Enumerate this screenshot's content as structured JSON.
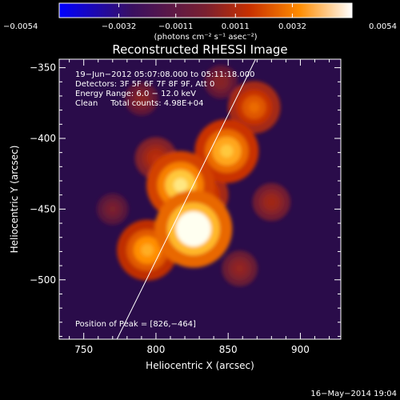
{
  "chart_data": {
    "type": "heatmap",
    "title": "Reconstructed RHESSI Image",
    "xlabel": "Heliocentric X (arcsec)",
    "ylabel": "Heliocentric Y (arcsec)",
    "xlim": [
      733,
      928
    ],
    "ylim": [
      -542,
      -344
    ],
    "x_ticks": [
      750,
      800,
      850,
      900
    ],
    "y_ticks": [
      -350,
      -400,
      -450,
      -500
    ],
    "colorbar": {
      "range": [
        -0.0054,
        0.0054
      ],
      "tick_values": [
        -0.0054,
        -0.0032,
        -0.0011,
        0.0011,
        0.0032,
        0.0054
      ],
      "tick_labels": [
        "−0.0054",
        "−0.0032",
        "−0.0011",
        "0.0011",
        "0.0032",
        "0.0054"
      ],
      "unit_label": "(photons cm⁻² s⁻¹ asec⁻²)"
    },
    "annotations": [
      "19−Jun−2012 05:07:08.000 to 05:11:18.000",
      "Detectors: 3F 5F 6F 7F 8F 9F, Att 0",
      "Energy Range: 6.0 − 12.0 keV",
      "Clean     Total counts: 4.98E+04"
    ],
    "peak_label": "Position of Peak = [826,−464]",
    "peak": [
      826,
      -464
    ],
    "sources": [
      {
        "x": 826,
        "y": -464,
        "value": 0.0054
      },
      {
        "x": 817,
        "y": -433,
        "value": 0.0045
      },
      {
        "x": 849,
        "y": -409,
        "value": 0.0041
      },
      {
        "x": 794,
        "y": -479,
        "value": 0.0038
      },
      {
        "x": 868,
        "y": -378,
        "value": 0.003
      },
      {
        "x": 832,
        "y": -440,
        "value": 0.003
      },
      {
        "x": 800,
        "y": -414,
        "value": 0.002
      },
      {
        "x": 880,
        "y": -445,
        "value": 0.0016
      },
      {
        "x": 858,
        "y": -492,
        "value": 0.0014
      },
      {
        "x": 790,
        "y": -372,
        "value": 0.0012
      },
      {
        "x": 770,
        "y": -450,
        "value": 0.001
      },
      {
        "x": 845,
        "y": -360,
        "value": 0.0012
      }
    ],
    "limb_line": [
      [
        773,
        -542
      ],
      [
        869,
        -344
      ]
    ],
    "grid": false
  },
  "footer": {
    "timestamp": "16−May−2014 19:04"
  },
  "colors": {
    "background": "#000000",
    "foreground": "#ffffff",
    "colormap": [
      "#0000ff",
      "#3a1060",
      "#7a2030",
      "#c83000",
      "#ff8c00",
      "#ffffff"
    ]
  }
}
